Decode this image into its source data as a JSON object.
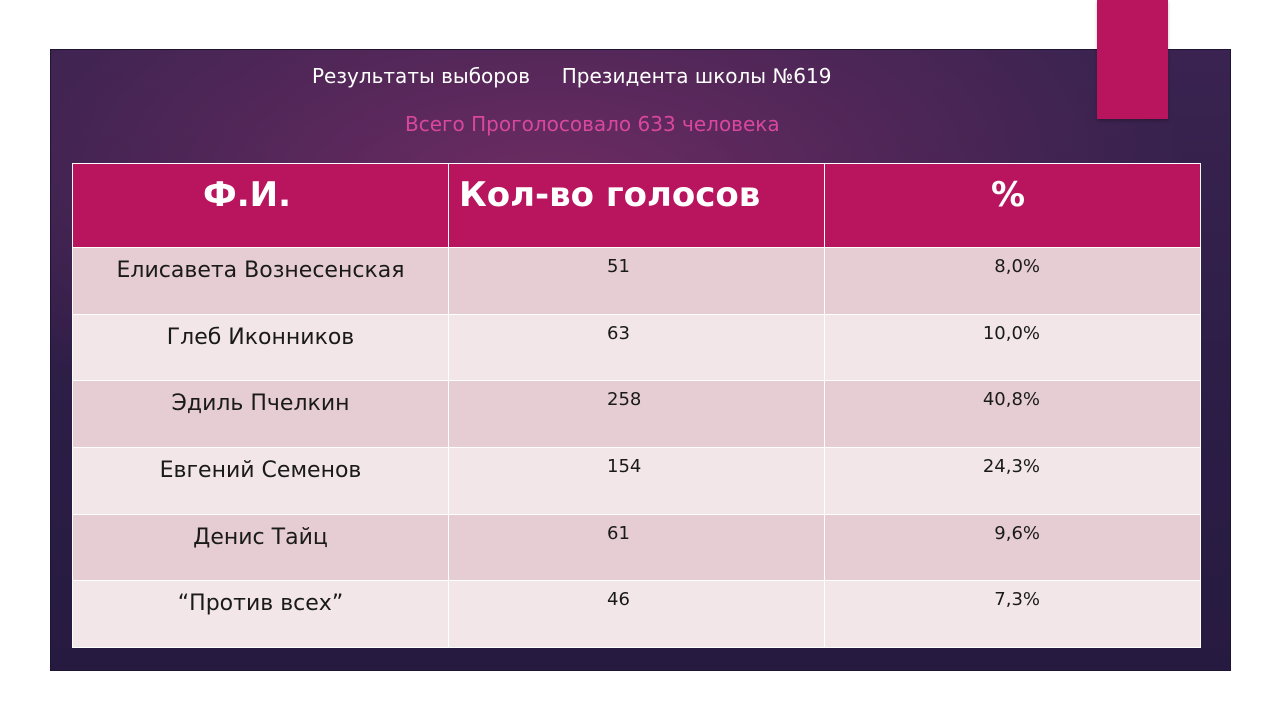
{
  "slide": {
    "title": "Результаты выборов     Президента школы №619",
    "subtitle": "Всего Проголосовало 633 человека",
    "accent_color": "#b8155e",
    "subtitle_color": "#d9479c"
  },
  "table": {
    "headers": {
      "name": "Ф.И.",
      "votes": "Кол-во голосов",
      "percent": "%"
    },
    "rows": [
      {
        "name": "Елисавета Вознесенская",
        "votes": "51",
        "percent": "8,0%"
      },
      {
        "name": "Глеб Иконников",
        "votes": "63",
        "percent": "10,0%"
      },
      {
        "name": "Эдиль Пчелкин",
        "votes": "258",
        "percent": "40,8%"
      },
      {
        "name": "Евгений Семенов",
        "votes": "154",
        "percent": "24,3%"
      },
      {
        "name": "Денис Тайц",
        "votes": "61",
        "percent": "9,6%"
      },
      {
        "name": "“Против всех”",
        "votes": "46",
        "percent": "7,3%"
      }
    ]
  }
}
